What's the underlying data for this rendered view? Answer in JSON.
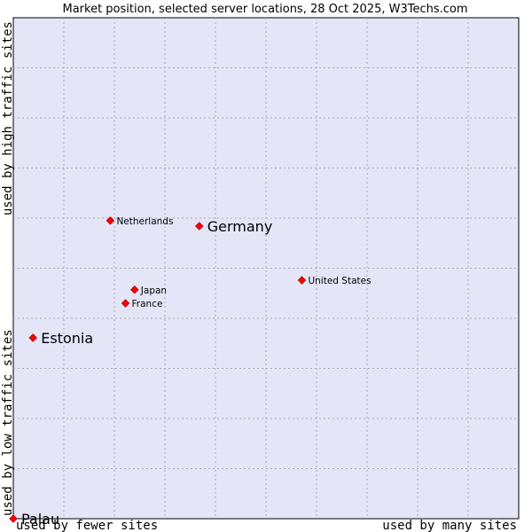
{
  "chart_data": {
    "type": "scatter",
    "title": "Market position, selected server locations, 28 Oct 2025, W3Techs.com",
    "xlabel_left": "used by fewer sites",
    "xlabel_right": "used by many sites",
    "ylabel_top": "used by high traffic sites",
    "ylabel_bottom": "used by low traffic sites",
    "xlim": [
      0,
      100
    ],
    "ylim": [
      0,
      100
    ],
    "grid": true,
    "colors": {
      "plot_bg": "#e4e6f8",
      "grid": "#a9a9b8",
      "frame": "#000000",
      "point": "#ff0000"
    },
    "points": [
      {
        "name": "Netherlands",
        "x": 19.2,
        "y": 59.5,
        "size": "small"
      },
      {
        "name": "Germany",
        "x": 36.8,
        "y": 58.4,
        "size": "large"
      },
      {
        "name": "United States",
        "x": 57.1,
        "y": 47.6,
        "size": "small"
      },
      {
        "name": "Japan",
        "x": 24.0,
        "y": 45.7,
        "size": "small"
      },
      {
        "name": "France",
        "x": 22.2,
        "y": 43.0,
        "size": "small"
      },
      {
        "name": "Estonia",
        "x": 3.9,
        "y": 36.1,
        "size": "large"
      },
      {
        "name": "Palau",
        "x": 0.0,
        "y": 0.0,
        "size": "large"
      }
    ]
  }
}
